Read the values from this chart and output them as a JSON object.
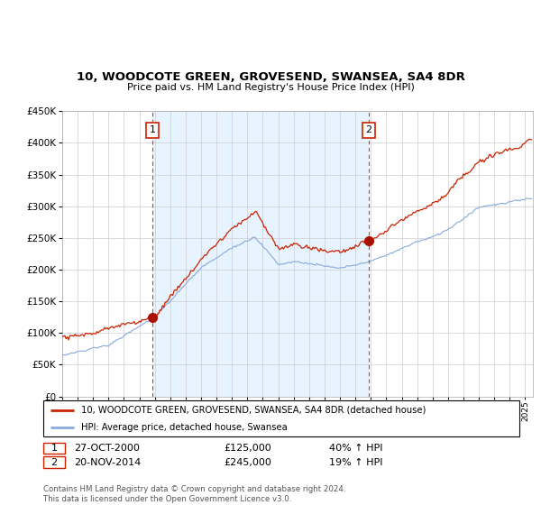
{
  "title": "10, WOODCOTE GREEN, GROVESEND, SWANSEA, SA4 8DR",
  "subtitle": "Price paid vs. HM Land Registry's House Price Index (HPI)",
  "background_color": "#ffffff",
  "grid_color": "#cccccc",
  "hpi_color": "#88aadd",
  "price_color": "#cc2200",
  "fill_color": "#ddeeff",
  "sale1_date": 2000.833,
  "sale1_price": 125000,
  "sale2_date": 2014.875,
  "sale2_price": 245000,
  "legend_price_label": "10, WOODCOTE GREEN, GROVESEND, SWANSEA, SA4 8DR (detached house)",
  "legend_hpi_label": "HPI: Average price, detached house, Swansea",
  "footer": "Contains HM Land Registry data © Crown copyright and database right 2024.\nThis data is licensed under the Open Government Licence v3.0.",
  "xmin": 1995,
  "xmax": 2025.5
}
